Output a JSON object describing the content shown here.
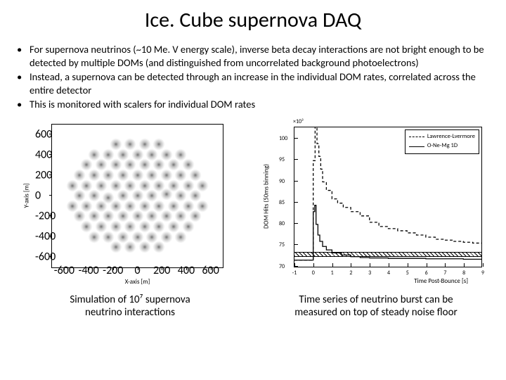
{
  "title": "Ice. Cube supernova DAQ",
  "bullets": [
    "For supernova neutrinos (~10 Me. V energy scale), inverse beta decay interactions are not bright enough to be detected by multiple DOMs (and distinguished from uncorrelated background photoelectrons)",
    "Instead, a supernova can be detected through an increase in the individual DOM rates, correlated across the entire detector",
    "This is monitored with scalers for individual DOM rates"
  ],
  "scatter": {
    "caption_line1": "Simulation of 10⁷ supernova",
    "caption_line2": "neutrino interactions",
    "xlabel": "X-axis [m]",
    "ylabel": "Y-axis [m]",
    "xlim": [
      -700,
      700
    ],
    "ylim": [
      -700,
      700
    ],
    "xticks": [
      -600,
      -400,
      -200,
      0,
      200,
      400,
      600
    ],
    "yticks": [
      -600,
      -400,
      -200,
      0,
      200,
      400,
      600
    ],
    "nuclei": [
      [
        0,
        0
      ],
      [
        7,
        0
      ],
      [
        14,
        1
      ],
      [
        -7,
        0
      ],
      [
        -14,
        -1
      ],
      [
        3.5,
        6
      ],
      [
        -3.5,
        6
      ],
      [
        3.5,
        -6
      ],
      [
        -3.5,
        -6
      ],
      [
        10.5,
        6
      ],
      [
        -10.5,
        6
      ],
      [
        10.5,
        -6
      ],
      [
        -10.5,
        -6
      ],
      [
        7,
        12
      ],
      [
        -7,
        12
      ],
      [
        7,
        -12
      ],
      [
        -7,
        -12
      ],
      [
        0,
        12
      ],
      [
        0,
        -12
      ],
      [
        14,
        12
      ],
      [
        -14,
        12
      ],
      [
        14,
        -12
      ],
      [
        -14,
        -12
      ],
      [
        21,
        0
      ],
      [
        -21,
        0
      ],
      [
        17.5,
        6
      ],
      [
        -17.5,
        6
      ],
      [
        17.5,
        -6
      ],
      [
        -17.5,
        -6
      ],
      [
        21,
        12
      ],
      [
        -21,
        12
      ],
      [
        21,
        -12
      ],
      [
        -21,
        -12
      ],
      [
        10.5,
        18
      ],
      [
        -10.5,
        18
      ],
      [
        10.5,
        -18
      ],
      [
        -10.5,
        -18
      ],
      [
        3.5,
        18
      ],
      [
        -3.5,
        18
      ],
      [
        3.5,
        -18
      ],
      [
        -3.5,
        -18
      ],
      [
        17.5,
        18
      ],
      [
        -17.5,
        18
      ],
      [
        17.5,
        -18
      ],
      [
        -17.5,
        -18
      ],
      [
        24.5,
        6
      ],
      [
        -24.5,
        6
      ],
      [
        24.5,
        -6
      ],
      [
        -24.5,
        -6
      ],
      [
        28,
        0
      ],
      [
        -28,
        0
      ],
      [
        0,
        24
      ],
      [
        0,
        -24
      ],
      [
        7,
        24
      ],
      [
        -7,
        24
      ],
      [
        7,
        -24
      ],
      [
        -7,
        -24
      ],
      [
        14,
        24
      ],
      [
        -14,
        24
      ],
      [
        14,
        -24
      ],
      [
        -14,
        -24
      ],
      [
        24.5,
        18
      ],
      [
        -24.5,
        18
      ],
      [
        24.5,
        -18
      ],
      [
        -24.5,
        -18
      ],
      [
        28,
        12
      ],
      [
        -28,
        12
      ],
      [
        28,
        -12
      ],
      [
        -28,
        -12
      ],
      [
        31.5,
        6
      ],
      [
        -31.5,
        6
      ],
      [
        31.5,
        -6
      ],
      [
        -31.5,
        -6
      ],
      [
        21,
        24
      ],
      [
        -21,
        24
      ],
      [
        21,
        -24
      ],
      [
        -21,
        -24
      ],
      [
        3.5,
        30
      ],
      [
        -3.5,
        30
      ],
      [
        3.5,
        -30
      ],
      [
        -3.5,
        -30
      ],
      [
        10.5,
        30
      ],
      [
        -10.5,
        30
      ],
      [
        10.5,
        -30
      ],
      [
        -10.5,
        -30
      ]
    ],
    "background_color": "#ffffff",
    "point_color": "#000000"
  },
  "timeseries": {
    "caption_line1": "Time series of neutrino burst can be",
    "caption_line2": "measured on top of steady noise floor",
    "xlabel": "Time Post-Bounce [s]",
    "ylabel": "DOM Hits (50ms binning)",
    "exp_label": "×10³",
    "xlim": [
      -1,
      9
    ],
    "ylim": [
      70,
      103
    ],
    "xticks": [
      -1,
      0,
      1,
      2,
      3,
      4,
      5,
      6,
      7,
      8,
      9
    ],
    "yticks": [
      70,
      75,
      80,
      85,
      90,
      95,
      100
    ],
    "noise_band": [
      71,
      72.2
    ],
    "legend": [
      {
        "style": "dashed",
        "label": "Lawrence-Lvermore"
      },
      {
        "style": "solid",
        "label": "O-Ne-Mg 1D"
      }
    ],
    "series": {
      "lawrence": {
        "color": "#000000",
        "dash": "4,3",
        "points": [
          [
            -1,
            71.6
          ],
          [
            -0.1,
            71.6
          ],
          [
            0,
            95
          ],
          [
            0.1,
            103
          ],
          [
            0.2,
            99
          ],
          [
            0.3,
            96
          ],
          [
            0.4,
            93
          ],
          [
            0.5,
            90
          ],
          [
            0.7,
            88
          ],
          [
            1,
            86
          ],
          [
            1.3,
            85
          ],
          [
            1.6,
            84
          ],
          [
            2,
            83
          ],
          [
            2.5,
            82
          ],
          [
            3,
            80.5
          ],
          [
            3.5,
            79.5
          ],
          [
            4,
            79
          ],
          [
            4.5,
            78.5
          ],
          [
            5,
            78
          ],
          [
            5.5,
            77.5
          ],
          [
            6,
            77
          ],
          [
            6.5,
            76.5
          ],
          [
            7,
            76.3
          ],
          [
            7.5,
            76
          ],
          [
            8,
            75.8
          ],
          [
            8.5,
            75.6
          ],
          [
            9,
            75.4
          ]
        ]
      },
      "onemg": {
        "color": "#000000",
        "dash": "none",
        "points": [
          [
            -1,
            71.6
          ],
          [
            -0.05,
            71.6
          ],
          [
            0,
            83
          ],
          [
            0.08,
            84.5
          ],
          [
            0.15,
            80
          ],
          [
            0.25,
            77.5
          ],
          [
            0.35,
            76
          ],
          [
            0.5,
            74.8
          ],
          [
            0.7,
            74
          ],
          [
            1,
            73.3
          ],
          [
            1.5,
            72.8
          ],
          [
            2,
            72.4
          ],
          [
            2.5,
            72.2
          ],
          [
            3,
            72.1
          ],
          [
            4,
            72
          ],
          [
            5,
            72
          ],
          [
            6,
            71.9
          ],
          [
            7,
            71.9
          ],
          [
            8,
            71.8
          ],
          [
            9,
            71.8
          ]
        ]
      }
    },
    "background_color": "#ffffff",
    "axis_color": "#000000"
  }
}
